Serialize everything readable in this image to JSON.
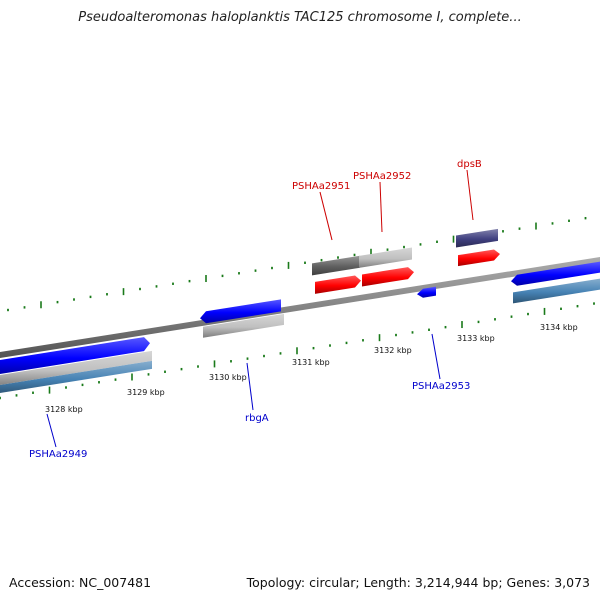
{
  "title": "Pseudoalteromonas haloplanktis TAC125 chromosome I, complete...",
  "footer": {
    "accession": "Accession: NC_007481",
    "summary": "Topology: circular; Length: 3,214,944 bp; Genes: 3,073"
  },
  "colors": {
    "backbone": "#808080",
    "tick": "#1a7a1a",
    "forward_gene": "#0000ff",
    "cds_gray": "#c0c0c0",
    "dark_gray": "#606060",
    "highlight_red": "#ff0000",
    "steel_blue": "#4682b4",
    "navy": "#404080",
    "label_red": "#cc0000",
    "label_blue": "#0000cc"
  },
  "axis_ticks": [
    "3128 kbp",
    "3129 kbp",
    "3130 kbp",
    "3131 kbp",
    "3132 kbp",
    "3133 kbp",
    "3134 kbp"
  ],
  "gene_labels": [
    {
      "name": "PSHAa2951",
      "color": "label_red"
    },
    {
      "name": "PSHAa2952",
      "color": "label_red"
    },
    {
      "name": "dpsB",
      "color": "label_red"
    },
    {
      "name": "PSHAa2953",
      "color": "label_blue"
    },
    {
      "name": "rbgA",
      "color": "label_blue"
    },
    {
      "name": "PSHAa2949",
      "color": "label_blue"
    }
  ]
}
